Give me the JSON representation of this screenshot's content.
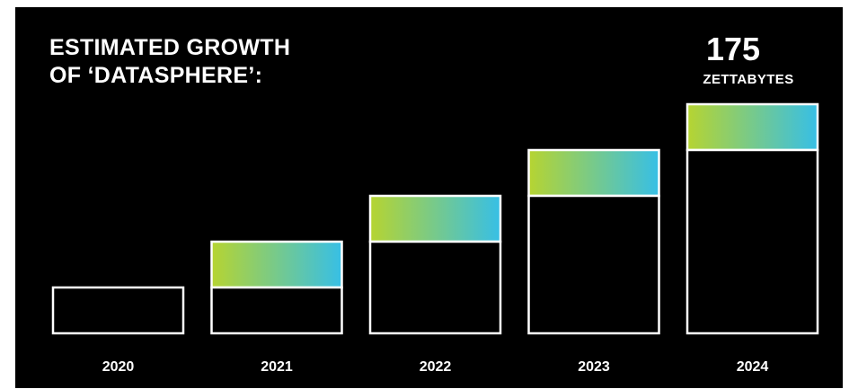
{
  "title_lines": [
    "ESTIMATED GROWTH",
    "OF ‘DATASPHERE’:"
  ],
  "highlight": {
    "value": "175",
    "unit": "ZETTABYTES"
  },
  "colors": {
    "background": "#000000",
    "outline": "#ffffff",
    "gradient_start": "#b6d431",
    "gradient_end": "#37bfe6"
  },
  "chart_data": {
    "type": "bar",
    "categories": [
      "2020",
      "2021",
      "2022",
      "2023",
      "2024"
    ],
    "values": [
      1,
      2,
      3,
      4,
      5
    ],
    "ylim": [
      0,
      5
    ],
    "grid": false,
    "legend": "none"
  }
}
